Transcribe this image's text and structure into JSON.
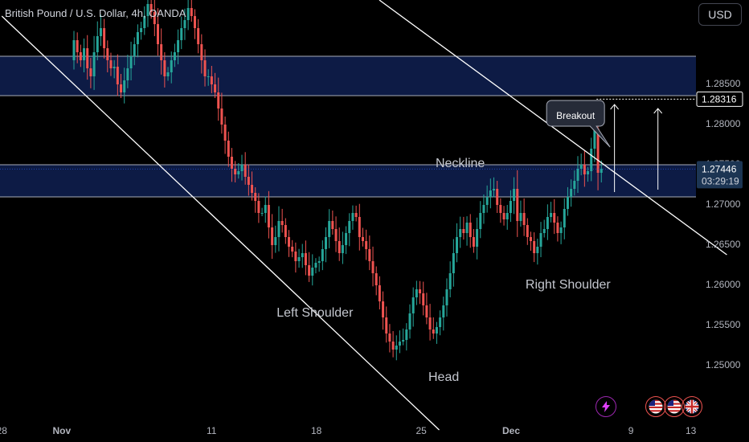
{
  "header": {
    "symbol_title": "British Pound / U.S. Dollar, 4h, OANDA",
    "currency_button": "USD"
  },
  "chart_data": {
    "type": "candlestick",
    "symbol": "British Pound / U.S. Dollar, 4h, OANDA",
    "timeframe": "4h",
    "y_ticks": [
      "1.28500",
      "1.28000",
      "1.27500",
      "1.27000",
      "1.26500",
      "1.26000",
      "1.25500",
      "1.25000"
    ],
    "ylim": [
      1.2434,
      1.2955
    ],
    "x_ticks": [
      {
        "label": "28",
        "day": 0
      },
      {
        "label": "Nov",
        "day": 4
      },
      {
        "label": "11",
        "day": 14
      },
      {
        "label": "18",
        "day": 21
      },
      {
        "label": "25",
        "day": 28
      },
      {
        "label": "Dec",
        "day": 34
      },
      {
        "label": "9",
        "day": 42
      },
      {
        "label": "13",
        "day": 46
      }
    ],
    "price_labels": [
      {
        "value": "1.28316",
        "kind": "level"
      },
      {
        "value": "1.27446",
        "kind": "last-price",
        "countdown": "03:29:19"
      }
    ],
    "zones": [
      {
        "from": 1.2836,
        "to": 1.2885,
        "name": "supply-zone"
      },
      {
        "from": 1.271,
        "to": 1.275,
        "name": "neckline-zone"
      }
    ],
    "annotations": [
      {
        "text": "Neckline",
        "day": 30.6,
        "price": 1.2751
      },
      {
        "text": "Left Shoulder",
        "day": 20.9,
        "price": 1.2565
      },
      {
        "text": "Head",
        "day": 29.5,
        "price": 1.2485
      },
      {
        "text": "Right Shoulder",
        "day": 37.8,
        "price": 1.26
      },
      {
        "text": "Breakout",
        "day": 38.3,
        "price": 1.281
      }
    ],
    "trendlines": [
      {
        "from": {
          "day": 0.0,
          "price": 1.2935
        },
        "to": {
          "day": 29.2,
          "price": 1.242
        }
      },
      {
        "from": {
          "day": 25.2,
          "price": 1.2955
        },
        "to": {
          "day": 48.4,
          "price": 1.2638
        }
      }
    ],
    "closes": [
      1.2905,
      1.289,
      1.288,
      1.2895,
      1.287,
      1.286,
      1.289,
      1.291,
      1.292,
      1.2895,
      1.288,
      1.287,
      1.2872,
      1.285,
      1.284,
      1.2855,
      1.287,
      1.2885,
      1.29,
      1.2915,
      1.292,
      1.2935,
      1.295,
      1.294,
      1.2925,
      1.29,
      1.288,
      1.286,
      1.2865,
      1.288,
      1.289,
      1.2905,
      1.292,
      1.293,
      1.2945,
      1.2935,
      1.292,
      1.29,
      1.288,
      1.286,
      1.286,
      1.285,
      1.284,
      1.282,
      1.28,
      1.278,
      1.276,
      1.2745,
      1.2738,
      1.2742,
      1.275,
      1.2735,
      1.2725,
      1.2715,
      1.2705,
      1.269,
      1.269,
      1.27,
      1.2672,
      1.265,
      1.266,
      1.268,
      1.2675,
      1.266,
      1.2648,
      1.2642,
      1.263,
      1.2635,
      1.264,
      1.2625,
      1.2612,
      1.2622,
      1.2628,
      1.263,
      1.2645,
      1.266,
      1.268,
      1.267,
      1.2655,
      1.264,
      1.265,
      1.2665,
      1.268,
      1.269,
      1.2685,
      1.266,
      1.2655,
      1.2645,
      1.263,
      1.2615,
      1.26,
      1.258,
      1.256,
      1.254,
      1.253,
      1.252,
      1.2525,
      1.253,
      1.2532,
      1.2545,
      1.2565,
      1.2585,
      1.2595,
      1.259,
      1.2575,
      1.256,
      1.2545,
      1.254,
      1.2548,
      1.256,
      1.2575,
      1.2595,
      1.2615,
      1.264,
      1.266,
      1.267,
      1.2665,
      1.2678,
      1.266,
      1.2648,
      1.267,
      1.269,
      1.27,
      1.271,
      1.2718,
      1.272,
      1.27,
      1.269,
      1.2682,
      1.269,
      1.2705,
      1.272,
      1.268,
      1.269,
      1.2675,
      1.266,
      1.2655,
      1.264,
      1.2648,
      1.2665,
      1.267,
      1.2685,
      1.269,
      1.2678,
      1.2665,
      1.2672,
      1.2695,
      1.271,
      1.272,
      1.273,
      1.2745,
      1.275,
      1.2738,
      1.2742,
      1.277,
      1.2795,
      1.274,
      1.2745
    ]
  },
  "icons": {
    "flash": "lightning-icon",
    "flag_us": "us-flag-icon",
    "flag_uk": "uk-flag-icon"
  },
  "colors": {
    "background": "#000000",
    "up": "#26a69a",
    "down": "#ef5350",
    "zone_fill": "#0d1b45",
    "zone_border": "#a8acb8",
    "trendline": "#ffffff",
    "grid": "#1a1d26"
  }
}
